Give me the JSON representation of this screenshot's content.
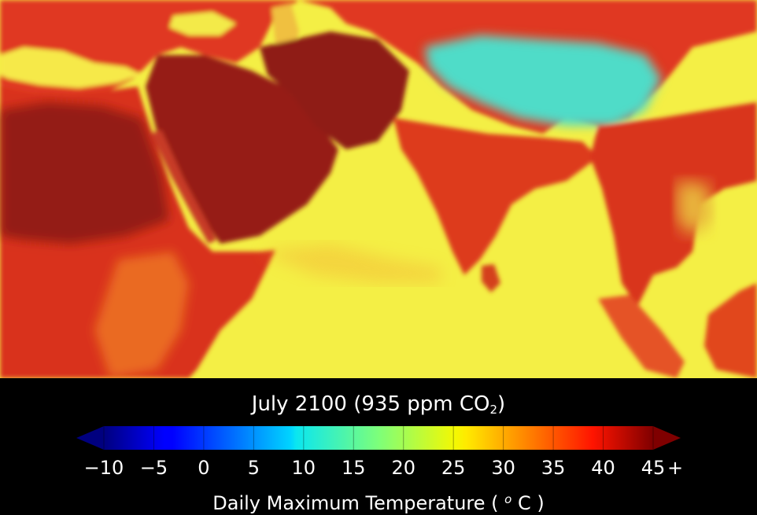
{
  "map": {
    "title_main": "July 2100 (935 ppm CO",
    "title_sub": "2",
    "title_end": ")",
    "colorbar": {
      "min": -10,
      "max": 45,
      "extend": "both",
      "colormap": "jet",
      "tick_labels": [
        "−10",
        "−5",
        "0",
        "5",
        "10",
        "15",
        "20",
        "25",
        "30",
        "35",
        "40",
        "45"
      ],
      "tick_values": [
        -10,
        -5,
        0,
        5,
        10,
        15,
        20,
        25,
        30,
        35,
        40,
        45
      ],
      "over_marker": "+",
      "label_main": "Daily Maximum Temperature ( ",
      "label_sup": "o",
      "label_end": " C )"
    },
    "colors": {
      "ocean": "#f4f041",
      "sahara_arabia": "#961a14",
      "land_hot": "#e13520",
      "land_warm": "#ea5a25",
      "tibet_cool": "#55e0c0",
      "background": "#000000"
    }
  }
}
